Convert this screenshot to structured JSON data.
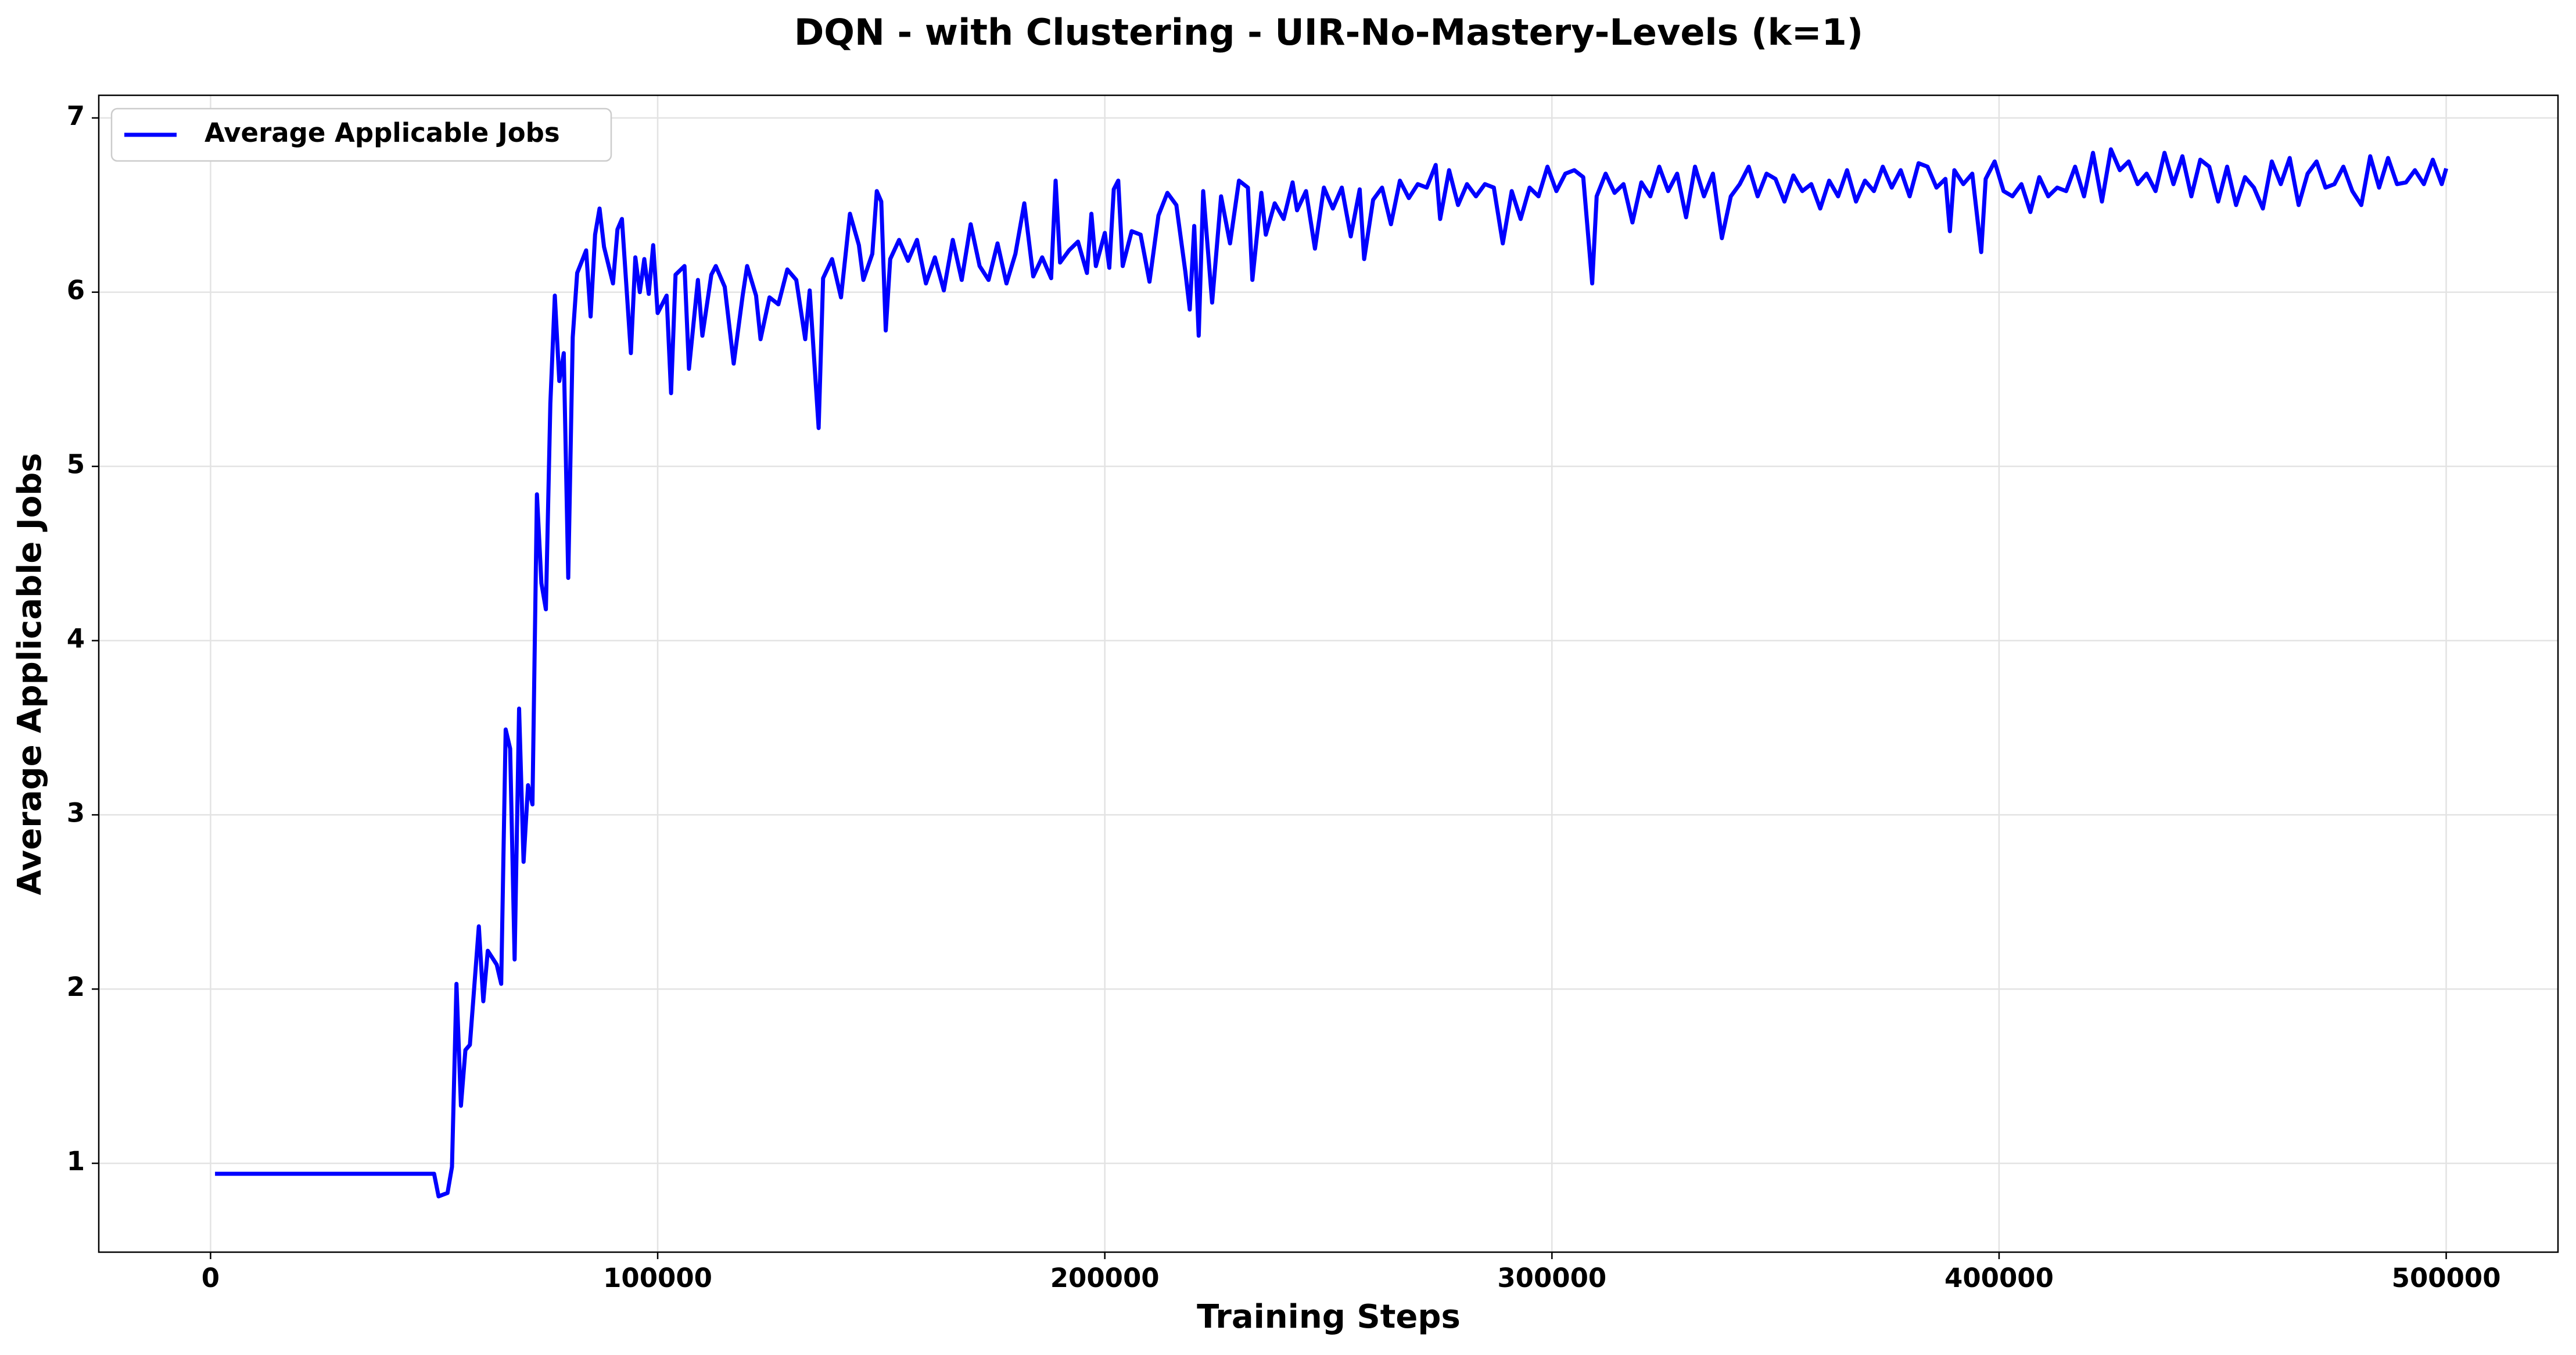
{
  "chart_data": {
    "type": "line",
    "title": "DQN - with Clustering - UIR-No-Mastery-Levels (k=1)",
    "xlabel": "Training Steps",
    "ylabel": "Average Applicable Jobs",
    "xlim": [
      -25000,
      525000
    ],
    "ylim": [
      0.49,
      7.13
    ],
    "xticks": [
      0,
      100000,
      200000,
      300000,
      400000,
      500000
    ],
    "yticks": [
      1,
      2,
      3,
      4,
      5,
      6,
      7
    ],
    "grid": true,
    "legend": "upper left",
    "x": [
      1000,
      10000,
      20000,
      30000,
      40000,
      50000,
      51000,
      53000,
      54000,
      55000,
      56000,
      57000,
      58000,
      60000,
      61000,
      62000,
      64000,
      65000,
      66000,
      67000,
      68000,
      69000,
      70000,
      71000,
      72000,
      73000,
      74000,
      75000,
      76000,
      77000,
      78000,
      79000,
      80000,
      81000,
      82000,
      84000,
      85000,
      86000,
      87000,
      88000,
      90000,
      91000,
      92000,
      94000,
      95000,
      96000,
      97000,
      98000,
      99000,
      100000,
      102000,
      103000,
      104000,
      106000,
      107000,
      109000,
      110000,
      112000,
      113000,
      115000,
      117000,
      119000,
      120000,
      122000,
      123000,
      125000,
      127000,
      129000,
      131000,
      133000,
      134000,
      136000,
      137000,
      139000,
      141000,
      143000,
      145000,
      146000,
      148000,
      149000,
      150000,
      151000,
      152000,
      154000,
      156000,
      158000,
      160000,
      162000,
      164000,
      166000,
      168000,
      170000,
      172000,
      174000,
      176000,
      178000,
      180000,
      182000,
      184000,
      186000,
      188000,
      189000,
      190000,
      192000,
      194000,
      196000,
      197000,
      198000,
      200000,
      201000,
      202000,
      203000,
      204000,
      206000,
      208000,
      210000,
      212000,
      214000,
      216000,
      218000,
      219000,
      220000,
      221000,
      222000,
      224000,
      226000,
      228000,
      230000,
      232000,
      233000,
      235000,
      236000,
      238000,
      240000,
      242000,
      243000,
      245000,
      247000,
      249000,
      251000,
      253000,
      255000,
      257000,
      258000,
      260000,
      262000,
      264000,
      266000,
      268000,
      270000,
      272000,
      274000,
      275000,
      277000,
      279000,
      281000,
      283000,
      285000,
      287000,
      289000,
      291000,
      293000,
      295000,
      297000,
      299000,
      301000,
      303000,
      305000,
      307000,
      309000,
      310000,
      312000,
      314000,
      316000,
      318000,
      320000,
      322000,
      324000,
      326000,
      328000,
      330000,
      332000,
      334000,
      336000,
      338000,
      340000,
      342000,
      344000,
      346000,
      348000,
      350000,
      352000,
      354000,
      356000,
      358000,
      360000,
      362000,
      364000,
      366000,
      368000,
      370000,
      372000,
      374000,
      376000,
      378000,
      380000,
      382000,
      384000,
      386000,
      388000,
      389000,
      390000,
      392000,
      394000,
      396000,
      397000,
      399000,
      401000,
      403000,
      405000,
      407000,
      409000,
      411000,
      413000,
      415000,
      417000,
      419000,
      421000,
      423000,
      425000,
      427000,
      429000,
      431000,
      433000,
      435000,
      437000,
      439000,
      441000,
      443000,
      445000,
      447000,
      449000,
      451000,
      453000,
      455000,
      457000,
      459000,
      461000,
      463000,
      465000,
      467000,
      469000,
      471000,
      473000,
      475000,
      477000,
      479000,
      481000,
      483000,
      485000,
      487000,
      489000,
      491000,
      493000,
      495000,
      497000,
      499000,
      500000
    ],
    "series": [
      {
        "name": "Average Applicable Jobs",
        "color": "#0000ff",
        "values": [
          0.94,
          0.94,
          0.94,
          0.94,
          0.94,
          0.94,
          0.81,
          0.83,
          0.98,
          2.03,
          1.33,
          1.65,
          1.68,
          2.36,
          1.93,
          2.22,
          2.14,
          2.03,
          3.49,
          3.38,
          2.17,
          3.61,
          2.73,
          3.17,
          3.06,
          4.84,
          4.33,
          4.18,
          5.36,
          5.98,
          5.49,
          5.65,
          4.36,
          5.74,
          6.11,
          6.24,
          5.86,
          6.33,
          6.48,
          6.26,
          6.05,
          6.36,
          6.42,
          5.65,
          6.2,
          6.0,
          6.19,
          5.99,
          6.27,
          5.88,
          5.98,
          5.42,
          6.1,
          6.15,
          5.56,
          6.07,
          5.75,
          6.1,
          6.15,
          6.03,
          5.59,
          5.98,
          6.15,
          5.98,
          5.73,
          5.97,
          5.93,
          6.13,
          6.07,
          5.73,
          6.01,
          5.22,
          6.08,
          6.19,
          5.97,
          6.45,
          6.27,
          6.07,
          6.22,
          6.58,
          6.52,
          5.78,
          6.19,
          6.3,
          6.18,
          6.3,
          6.05,
          6.2,
          6.01,
          6.3,
          6.07,
          6.39,
          6.15,
          6.07,
          6.28,
          6.05,
          6.22,
          6.51,
          6.09,
          6.2,
          6.08,
          6.64,
          6.17,
          6.24,
          6.29,
          6.11,
          6.45,
          6.15,
          6.34,
          6.14,
          6.59,
          6.64,
          6.15,
          6.35,
          6.33,
          6.06,
          6.44,
          6.57,
          6.5,
          6.12,
          5.9,
          6.38,
          5.75,
          6.58,
          5.94,
          6.55,
          6.28,
          6.64,
          6.6,
          6.07,
          6.57,
          6.33,
          6.51,
          6.42,
          6.63,
          6.47,
          6.58,
          6.25,
          6.6,
          6.48,
          6.6,
          6.32,
          6.59,
          6.19,
          6.53,
          6.6,
          6.39,
          6.64,
          6.54,
          6.62,
          6.6,
          6.73,
          6.42,
          6.7,
          6.5,
          6.62,
          6.55,
          6.62,
          6.6,
          6.28,
          6.58,
          6.42,
          6.6,
          6.55,
          6.72,
          6.58,
          6.68,
          6.7,
          6.66,
          6.05,
          6.55,
          6.68,
          6.57,
          6.62,
          6.4,
          6.63,
          6.55,
          6.72,
          6.58,
          6.68,
          6.43,
          6.72,
          6.55,
          6.68,
          6.31,
          6.55,
          6.62,
          6.72,
          6.55,
          6.68,
          6.65,
          6.52,
          6.67,
          6.58,
          6.62,
          6.48,
          6.64,
          6.55,
          6.7,
          6.52,
          6.64,
          6.58,
          6.72,
          6.6,
          6.7,
          6.55,
          6.74,
          6.72,
          6.6,
          6.65,
          6.35,
          6.7,
          6.62,
          6.68,
          6.23,
          6.65,
          6.75,
          6.58,
          6.55,
          6.62,
          6.46,
          6.66,
          6.55,
          6.6,
          6.58,
          6.72,
          6.55,
          6.8,
          6.52,
          6.82,
          6.7,
          6.75,
          6.62,
          6.68,
          6.58,
          6.8,
          6.62,
          6.78,
          6.55,
          6.76,
          6.72,
          6.52,
          6.72,
          6.5,
          6.66,
          6.6,
          6.48,
          6.75,
          6.62,
          6.77,
          6.5,
          6.68,
          6.75,
          6.6,
          6.62,
          6.72,
          6.58,
          6.5,
          6.78,
          6.6,
          6.77,
          6.62,
          6.63,
          6.7,
          6.62,
          6.76,
          6.62,
          6.71
        ]
      }
    ]
  }
}
